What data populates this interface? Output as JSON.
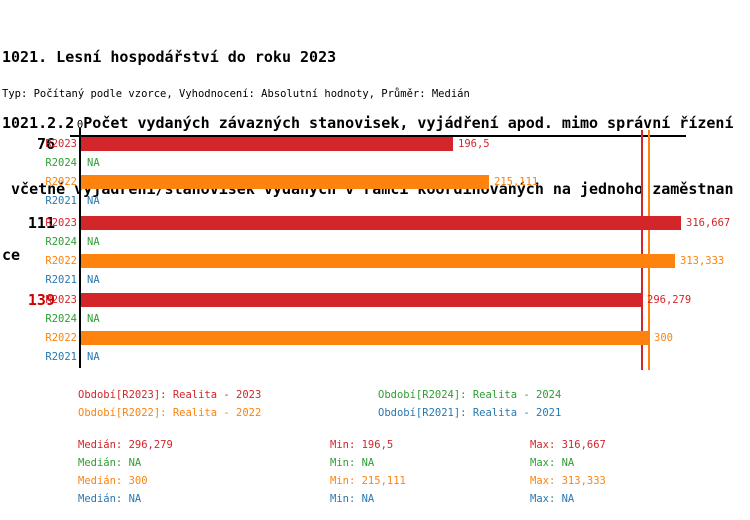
{
  "header": {
    "title_lines": [
      "1021. Lesní hospodářství do roku 2023",
      "1021.2.2 Počet vydaných závazných stanovisek, vyjádření apod. mimo správní řízení",
      " včetně vyjádření/stanovisek vydaných v rámci koordinovaných na jednoho zaměstnan",
      "ce"
    ],
    "meta_line": "Typ: Počítaný podle vzorce, Vyhodnocení: Absolutní hodnoty, Průměr: Medián"
  },
  "colors": {
    "r2023": "#d3262a",
    "r2024": "#2e9e32",
    "r2022": "#fd830e",
    "r2021": "#2878b0",
    "group_highlight": "#cc0000",
    "axis": "#000000"
  },
  "chart": {
    "zero_label": "0",
    "group_labels": [
      {
        "text": "76"
      },
      {
        "text": "111"
      },
      {
        "text": "139"
      }
    ],
    "rows": [
      {
        "label": "R2023",
        "series": "r2023",
        "value": 196.5,
        "value_label": "196,5"
      },
      {
        "label": "R2024",
        "series": "r2024",
        "value": null,
        "value_label": "NA"
      },
      {
        "label": "R2022",
        "series": "r2022",
        "value": 215.111,
        "value_label": "215,111"
      },
      {
        "label": "R2021",
        "series": "r2021",
        "value": null,
        "value_label": "NA"
      },
      {
        "label": "R2023",
        "series": "r2023",
        "value": 316.667,
        "value_label": "316,667"
      },
      {
        "label": "R2024",
        "series": "r2024",
        "value": null,
        "value_label": "NA"
      },
      {
        "label": "R2022",
        "series": "r2022",
        "value": 313.333,
        "value_label": "313,333"
      },
      {
        "label": "R2021",
        "series": "r2021",
        "value": null,
        "value_label": "NA"
      },
      {
        "label": "R2023",
        "series": "r2023",
        "value": 296.279,
        "value_label": "296,279"
      },
      {
        "label": "R2024",
        "series": "r2024",
        "value": null,
        "value_label": "NA"
      },
      {
        "label": "R2022",
        "series": "r2022",
        "value": 300,
        "value_label": "300"
      },
      {
        "label": "R2021",
        "series": "r2021",
        "value": null,
        "value_label": "NA"
      }
    ]
  },
  "legend": {
    "items": [
      {
        "text": "Období[R2023]: Realita - 2023",
        "series": "r2023"
      },
      {
        "text": "Období[R2024]: Realita - 2024",
        "series": "r2024"
      },
      {
        "text": "Období[R2022]: Realita - 2022",
        "series": "r2022"
      },
      {
        "text": "Období[R2021]: Realita - 2021",
        "series": "r2021"
      }
    ]
  },
  "stats": {
    "rows": [
      {
        "series": "r2023",
        "median": "Medián: 296,279",
        "min": "Min: 196,5",
        "max": "Max: 316,667"
      },
      {
        "series": "r2024",
        "median": "Medián: NA",
        "min": "Min: NA",
        "max": "Max: NA"
      },
      {
        "series": "r2022",
        "median": "Medián: 300",
        "min": "Min: 215,111",
        "max": "Max: 313,333"
      },
      {
        "series": "r2021",
        "median": "Medián: NA",
        "min": "Min: NA",
        "max": "Max: NA"
      }
    ]
  },
  "chart_data": {
    "type": "bar",
    "orientation": "horizontal",
    "title": "1021. Lesní hospodářství do roku 2023",
    "subtitle": "1021.2.2 Počet vydaných závazných stanovisek, vyjádření apod. mimo správní řízení včetně vyjádření/stanovisek vydaných v rámci koordinovaných na jednoho zaměstnance",
    "meta": "Typ: Počítaný podle vzorce, Vyhodnocení: Absolutní hodnoty, Průměr: Medián",
    "categories": [
      "76",
      "111",
      "139"
    ],
    "series": [
      {
        "name": "R2023",
        "legend": "Období[R2023]: Realita - 2023",
        "color": "#d3262a",
        "values": [
          196.5,
          316.667,
          296.279
        ],
        "median": 296.279,
        "min": 196.5,
        "max": 316.667
      },
      {
        "name": "R2024",
        "legend": "Období[R2024]: Realita - 2024",
        "color": "#2e9e32",
        "values": [
          null,
          null,
          null
        ],
        "median": null,
        "min": null,
        "max": null
      },
      {
        "name": "R2022",
        "legend": "Období[R2022]: Realita - 2022",
        "color": "#fd830e",
        "values": [
          215.111,
          313.333,
          300
        ],
        "median": 300,
        "min": 215.111,
        "max": 313.333
      },
      {
        "name": "R2021",
        "legend": "Období[R2021]: Realita - 2021",
        "color": "#2878b0",
        "values": [
          null,
          null,
          null
        ],
        "median": null,
        "min": null,
        "max": null
      }
    ],
    "xlim": [
      0,
      320
    ],
    "x_ticks": [
      0
    ],
    "grid": false,
    "legend_position": "bottom",
    "na_text": "NA",
    "reference_lines": [
      {
        "value": 296.279,
        "color": "#d3262a",
        "label": "medián R2023"
      },
      {
        "value": 300,
        "color": "#fd830e",
        "label": "medián R2022"
      }
    ]
  }
}
